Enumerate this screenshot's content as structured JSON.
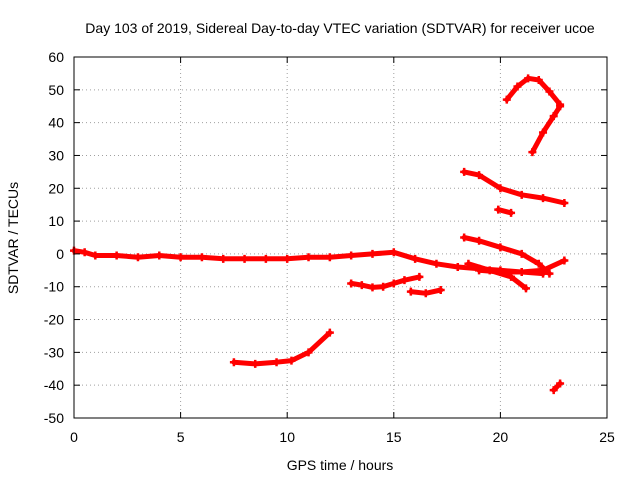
{
  "chart_data": {
    "type": "scatter",
    "title": "Day 103 of 2019, Sidereal Day-to-day VTEC variation (SDTVAR) for receiver ucoe",
    "xlabel": "GPS time / hours",
    "ylabel": "SDTVAR / TECUs",
    "xlim": [
      0,
      25
    ],
    "ylim": [
      -50,
      60
    ],
    "xticks": [
      0,
      5,
      10,
      15,
      20,
      25
    ],
    "yticks": [
      -50,
      -40,
      -30,
      -20,
      -10,
      0,
      10,
      20,
      30,
      40,
      50,
      60
    ],
    "grid": true,
    "legend": "none",
    "marker_color": "#ff0000",
    "series": [
      {
        "x": [
          0,
          0.5,
          1,
          2,
          3,
          4,
          5,
          6,
          7,
          8,
          9,
          10,
          11,
          12,
          13,
          14,
          15,
          16,
          17,
          18,
          19,
          20,
          21,
          22,
          23
        ],
        "y": [
          1,
          0.5,
          -0.5,
          -0.5,
          -1,
          -0.5,
          -1,
          -1,
          -1.5,
          -1.5,
          -1.5,
          -1.5,
          -1,
          -1,
          -0.5,
          0,
          0.5,
          -1.5,
          -3,
          -4,
          -4.5,
          -5,
          -5.5,
          -5,
          -2
        ]
      },
      {
        "x": [
          19,
          20,
          21,
          22
        ],
        "y": [
          -5,
          -5.5,
          -5.5,
          -6
        ]
      },
      {
        "x": [
          7.5,
          8.5,
          9.5,
          10.2,
          11,
          12
        ],
        "y": [
          -33,
          -33.5,
          -33,
          -32.5,
          -30,
          -24
        ]
      },
      {
        "x": [
          13,
          13.5,
          14,
          14.5,
          15,
          15.5,
          16.2
        ],
        "y": [
          -9,
          -9.5,
          -10.2,
          -10,
          -9,
          -8,
          -7
        ]
      },
      {
        "x": [
          15.8,
          16.5,
          17.2
        ],
        "y": [
          -11.5,
          -12,
          -11
        ]
      },
      {
        "x": [
          18.3,
          19,
          20,
          21,
          22,
          23
        ],
        "y": [
          25,
          24,
          20,
          18,
          17,
          15.5
        ]
      },
      {
        "x": [
          19.9,
          20.5
        ],
        "y": [
          13.5,
          12.5
        ]
      },
      {
        "x": [
          18.3,
          19,
          20,
          21,
          21.8,
          22.3
        ],
        "y": [
          5,
          4,
          2,
          0,
          -3,
          -6
        ]
      },
      {
        "x": [
          20.3,
          20.8,
          21.3,
          21.8,
          22.3,
          22.8
        ],
        "y": [
          47,
          51,
          53.5,
          53,
          49.5,
          45.5
        ]
      },
      {
        "x": [
          21.5,
          22,
          22.5,
          22.8
        ],
        "y": [
          31,
          37,
          42,
          45
        ]
      },
      {
        "x": [
          18.5,
          19.5,
          20.5,
          21.2
        ],
        "y": [
          -3,
          -5,
          -7,
          -10.5
        ]
      },
      {
        "x": [
          22.5,
          22.8
        ],
        "y": [
          -41.5,
          -39.5
        ]
      }
    ]
  }
}
